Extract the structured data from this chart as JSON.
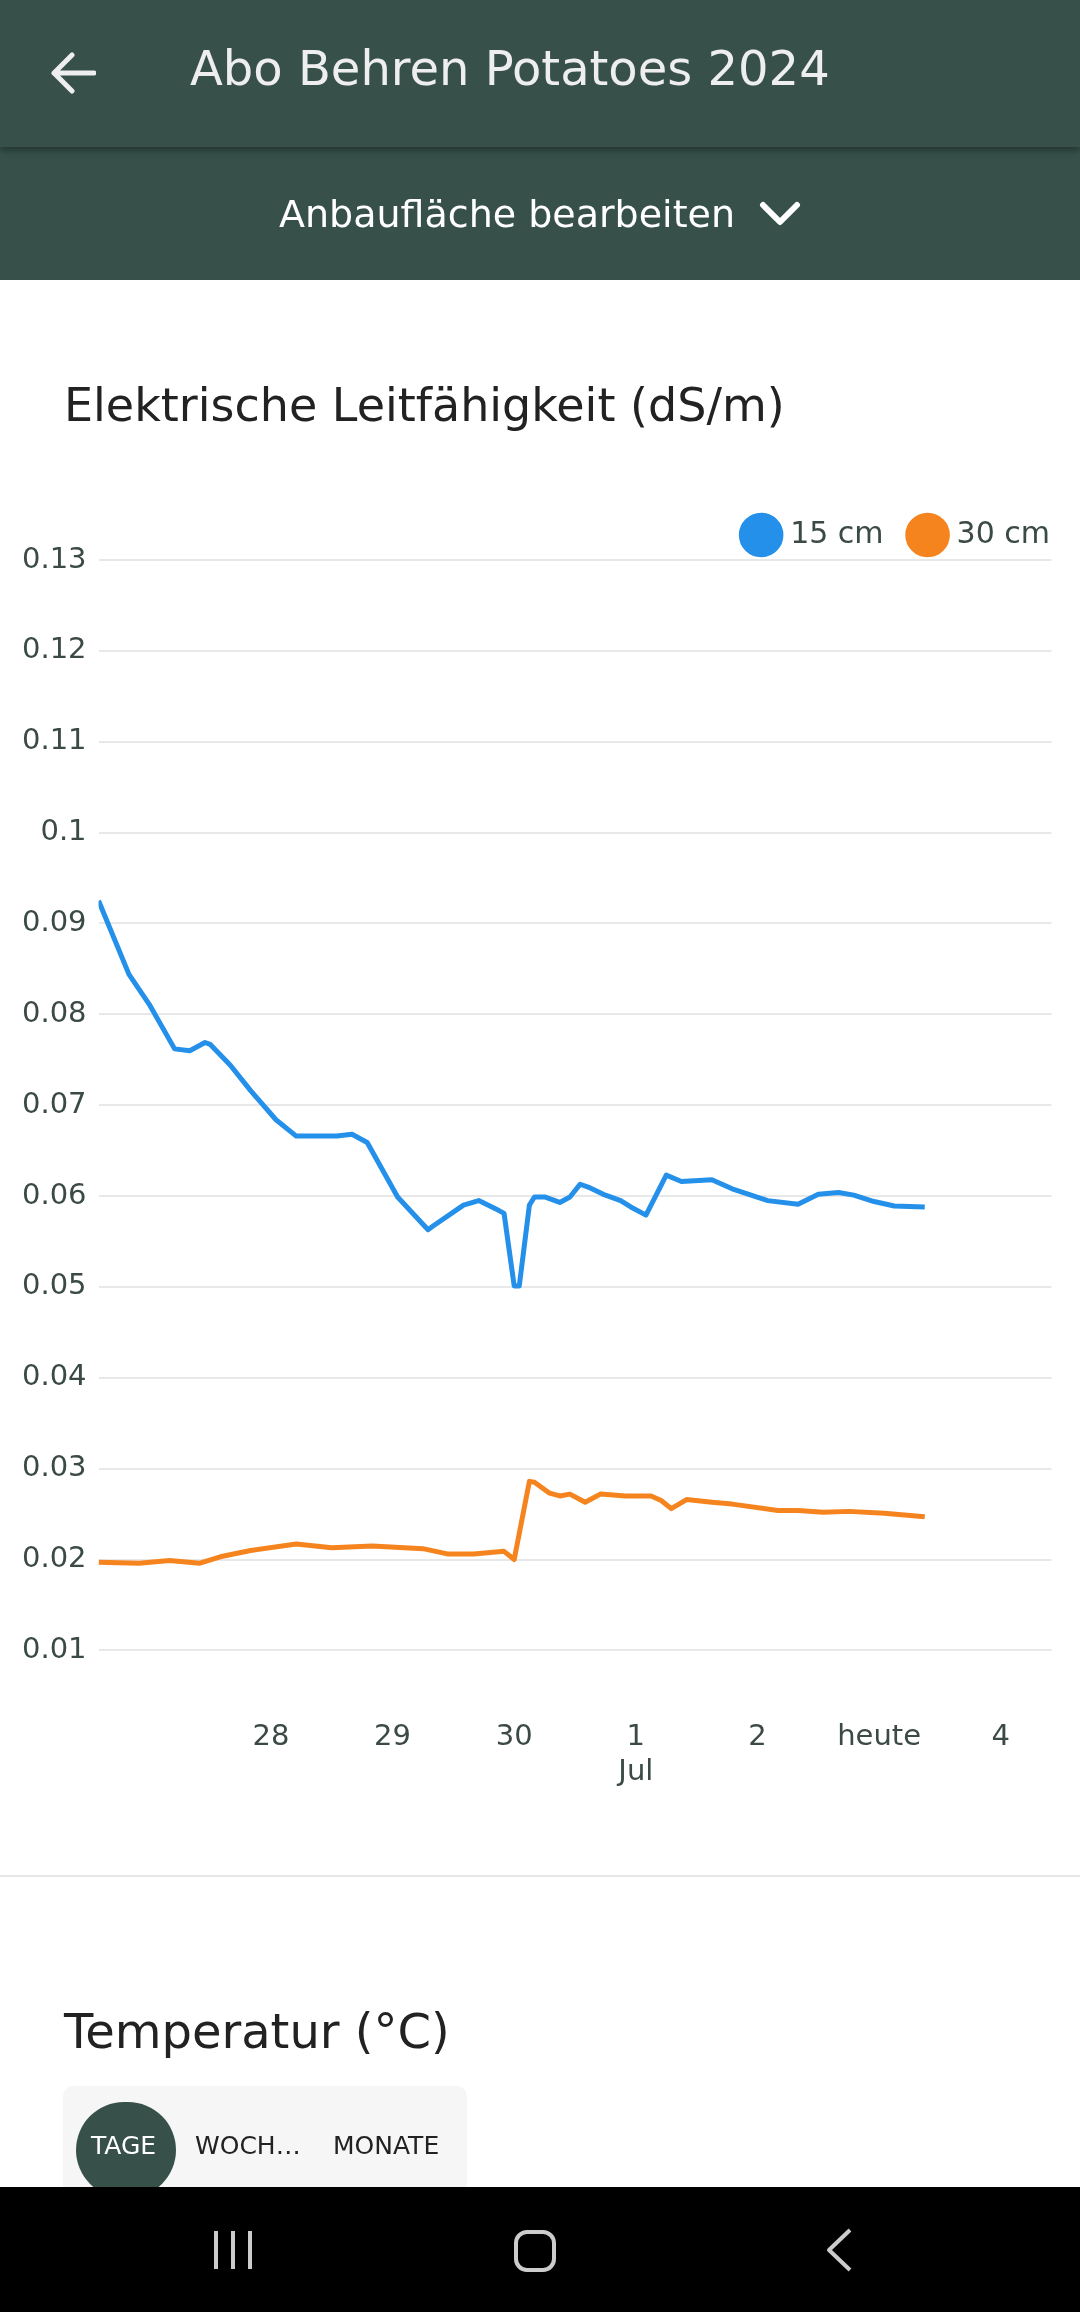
{
  "chart_data": {
    "type": "line",
    "title": "Elektrische Leitfähigkeit (dS/m)",
    "annotations": [
      "Abo Behren Potatoes 2024",
      "Anbaufläche bearbeiten",
      "Temperatur (°C)",
      "TAGE",
      "WOCH…",
      "MONATE"
    ],
    "xlim": [
      "--06-26T14:00",
      "--07-04T10:00"
    ],
    "xticks": [
      {
        "value": "--06-28",
        "label": "28"
      },
      {
        "value": "--06-29",
        "label": "29"
      },
      {
        "value": "--06-30",
        "label": "30"
      },
      {
        "value": "--07-01",
        "label": "1\nJul"
      },
      {
        "value": "--07-02",
        "label": "2"
      },
      {
        "value": "--07-03",
        "label": "heute"
      },
      {
        "value": "--07-04",
        "label": "4"
      }
    ],
    "ylim": [
      0.01,
      0.13
    ],
    "yticks": [
      0.01,
      0.02,
      0.03,
      0.04,
      0.05,
      0.06,
      0.07,
      0.08,
      0.09,
      0.1,
      0.11,
      0.12,
      0.13
    ],
    "grid": "y",
    "legend": "top right",
    "series": [
      {
        "name": "15 cm",
        "color": "#2490ea",
        "x": [
          "--06-26T14:00",
          "--06-26T20:00",
          "--06-27T00:00",
          "--06-27T05:00",
          "--06-27T08:00",
          "--06-27T11:00",
          "--06-27T12:00",
          "--06-27T16:00",
          "--06-27T20:00",
          "--06-28T01:00",
          "--06-28T05:00",
          "--06-28T08:00",
          "--06-28T13:00",
          "--06-28T16:00",
          "--06-28T19:00",
          "--06-29T01:00",
          "--06-29T07:00",
          "--06-29T08:00",
          "--06-29T14:00",
          "--06-29T17:00",
          "--06-29T21:00",
          "--06-29T22:00",
          "--06-30T00:00",
          "--06-30T01:00",
          "--06-30T03:00",
          "--06-30T04:00",
          "--06-30T06:00",
          "--06-30T09:00",
          "--06-30T11:00",
          "--06-30T13:00",
          "--06-30T15:00",
          "--06-30T18:00",
          "--06-30T21:00",
          "--06-30T23:00",
          "--07-01T02:00",
          "--07-01T06:00",
          "--07-01T09:00",
          "--07-01T15:00",
          "--07-01T19:00",
          "--07-02T02:00",
          "--07-02T08:00",
          "--07-02T12:00",
          "--07-02T16:00",
          "--07-02T19:00",
          "--07-02T23:00",
          "--07-03T03:00",
          "--07-03T09:00"
        ],
        "values": [
          0.0925,
          0.0844,
          0.0811,
          0.0762,
          0.076,
          0.0769,
          0.0767,
          0.0744,
          0.0716,
          0.0684,
          0.0666,
          0.0666,
          0.0666,
          0.0668,
          0.0659,
          0.0599,
          0.0563,
          0.0567,
          0.059,
          0.0595,
          0.0584,
          0.0581,
          0.0501,
          0.0501,
          0.059,
          0.0599,
          0.0599,
          0.0593,
          0.0599,
          0.0613,
          0.0609,
          0.0601,
          0.0595,
          0.0588,
          0.0579,
          0.0623,
          0.0616,
          0.0618,
          0.0608,
          0.0595,
          0.0591,
          0.0602,
          0.0604,
          0.0601,
          0.0594,
          0.0589,
          0.0588
        ]
      },
      {
        "name": "30 cm",
        "color": "#f5841f",
        "x": [
          "--06-26T14:00",
          "--06-26T22:00",
          "--06-27T04:00",
          "--06-27T10:00",
          "--06-27T14:00",
          "--06-27T20:00",
          "--06-28T05:00",
          "--06-28T12:00",
          "--06-28T20:00",
          "--06-29T06:00",
          "--06-29T11:00",
          "--06-29T16:00",
          "--06-29T22:00",
          "--06-30T00:00",
          "--06-30T03:00",
          "--06-30T04:00",
          "--06-30T07:00",
          "--06-30T09:00",
          "--06-30T11:00",
          "--06-30T14:00",
          "--06-30T17:00",
          "--06-30T22:00",
          "--07-01T03:00",
          "--07-01T05:00",
          "--07-01T07:00",
          "--07-01T10:00",
          "--07-01T15:00",
          "--07-01T19:00",
          "--07-02T04:00",
          "--07-02T08:00",
          "--07-02T13:00",
          "--07-02T18:00",
          "--07-03T01:00",
          "--07-03T09:00"
        ],
        "values": [
          0.0197,
          0.0196,
          0.0199,
          0.0196,
          0.0203,
          0.021,
          0.0217,
          0.0213,
          0.0215,
          0.0212,
          0.0206,
          0.0206,
          0.0209,
          0.02,
          0.0286,
          0.0285,
          0.0273,
          0.027,
          0.0272,
          0.0263,
          0.0272,
          0.027,
          0.027,
          0.0265,
          0.0256,
          0.0266,
          0.0263,
          0.0261,
          0.0254,
          0.0254,
          0.0252,
          0.0253,
          0.0251,
          0.0247
        ]
      }
    ]
  }
}
